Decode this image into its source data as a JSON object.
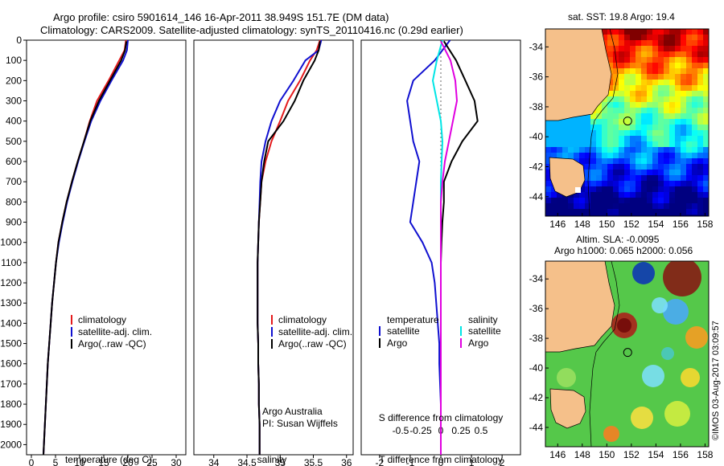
{
  "header": {
    "title_line1": "Argo profile: csiro 5901614_146 16-Apr-2011 38.949S 151.7E (DM data)",
    "title_line2": "Climatology: CARS2009. Satellite-adjusted climatology: synTS_20110416.nc (0.29d earlier)"
  },
  "colors": {
    "climatology": "#e41a1c",
    "satellite": "#1010d0",
    "argo": "#000000",
    "sat_temp_diff": "#1010d0",
    "sat_sal_diff": "#00e5e5",
    "argo_sal_diff": "#e000e0",
    "land": "#f5c08a"
  },
  "chart_data": [
    {
      "id": "temperature",
      "type": "line",
      "xlabel": "temperature (deg C)",
      "ylabel": "",
      "xlim": [
        -1,
        32
      ],
      "ylim": [
        2050,
        0
      ],
      "xticks": [
        0,
        5,
        10,
        15,
        20,
        25,
        30
      ],
      "yticks": [
        0,
        100,
        200,
        300,
        400,
        500,
        600,
        700,
        800,
        900,
        1000,
        1100,
        1200,
        1300,
        1400,
        1500,
        1600,
        1700,
        1800,
        1900,
        2000
      ],
      "legend": [
        "climatology",
        "satellite-adj. clim.",
        "Argo(..raw -QC)"
      ],
      "legend_position": "center-left",
      "series": [
        {
          "name": "climatology",
          "color": "climatology",
          "x": [
            19.6,
            19.3,
            18.2,
            16.0,
            13.6,
            12.1,
            10.9,
            9.6,
            8.4,
            7.3,
            6.4,
            5.6,
            5.1,
            4.7,
            4.3,
            4.0,
            3.7,
            3.4,
            3.2,
            3.0,
            2.8,
            2.6,
            2.5
          ],
          "y": [
            0,
            50,
            100,
            200,
            300,
            400,
            500,
            600,
            700,
            800,
            900,
            1000,
            1100,
            1200,
            1300,
            1400,
            1500,
            1600,
            1700,
            1800,
            1900,
            2000,
            2050
          ]
        },
        {
          "name": "satellite-adj. clim.",
          "color": "satellite",
          "x": [
            20.0,
            19.8,
            19.0,
            16.6,
            14.3,
            12.4,
            11.0,
            9.7,
            8.5,
            7.4,
            6.5,
            5.7,
            5.1,
            4.7,
            4.3,
            4.0,
            3.7,
            3.4,
            3.2,
            3.0,
            2.8,
            2.6,
            2.5
          ],
          "y": [
            0,
            50,
            100,
            200,
            300,
            400,
            500,
            600,
            700,
            800,
            900,
            1000,
            1100,
            1200,
            1300,
            1400,
            1500,
            1600,
            1700,
            1800,
            1900,
            2000,
            2050
          ]
        },
        {
          "name": "Argo(..raw -QC)",
          "color": "argo",
          "x": [
            19.7,
            19.4,
            18.6,
            16.3,
            14.0,
            12.2,
            10.9,
            9.6,
            8.4,
            7.3,
            6.4,
            5.6,
            5.1,
            4.7,
            4.3,
            4.0,
            3.7,
            3.4,
            3.2,
            3.0,
            2.8,
            2.6,
            2.5
          ],
          "y": [
            5,
            50,
            100,
            200,
            300,
            400,
            500,
            600,
            700,
            800,
            900,
            1000,
            1100,
            1200,
            1300,
            1400,
            1500,
            1600,
            1700,
            1800,
            1900,
            2000,
            2050
          ]
        }
      ]
    },
    {
      "id": "salinity",
      "type": "line",
      "xlabel": "salinity",
      "xlim": [
        33.7,
        36.1
      ],
      "ylim": [
        2050,
        0
      ],
      "xticks": [
        34,
        34.5,
        35,
        35.5,
        36
      ],
      "xticklabels": [
        "34",
        "34.5",
        "35",
        "35.5",
        "36"
      ],
      "legend": [
        "climatology",
        "satellite-adj. clim.",
        "Argo(..raw -QC)"
      ],
      "legend_position": "center-right",
      "annotation": [
        "Argo Australia",
        "PI: Susan Wijffels"
      ],
      "series": [
        {
          "name": "climatology",
          "color": "climatology",
          "x": [
            35.6,
            35.55,
            35.45,
            35.3,
            35.12,
            35.0,
            34.87,
            34.78,
            34.72,
            34.7,
            34.68,
            34.67,
            34.66,
            34.66,
            34.66,
            34.66,
            34.67,
            34.67,
            34.68,
            34.68,
            34.69,
            34.69
          ],
          "y": [
            0,
            50,
            100,
            200,
            300,
            400,
            500,
            600,
            700,
            800,
            900,
            1000,
            1100,
            1200,
            1300,
            1400,
            1500,
            1600,
            1700,
            1800,
            1900,
            2050
          ]
        },
        {
          "name": "satellite-adj. clim.",
          "color": "satellite",
          "x": [
            35.62,
            35.58,
            35.38,
            35.2,
            35.0,
            34.87,
            34.78,
            34.72,
            34.7,
            34.69,
            34.68,
            34.67,
            34.66,
            34.66,
            34.66,
            34.66,
            34.67,
            34.67,
            34.68,
            34.68,
            34.69,
            34.69
          ],
          "y": [
            0,
            50,
            100,
            200,
            300,
            400,
            500,
            600,
            700,
            800,
            900,
            1000,
            1100,
            1200,
            1300,
            1400,
            1500,
            1600,
            1700,
            1800,
            1900,
            2050
          ]
        },
        {
          "name": "Argo(..raw -QC)",
          "color": "argo",
          "x": [
            35.6,
            35.58,
            35.52,
            35.35,
            35.22,
            35.05,
            34.82,
            34.76,
            34.72,
            34.7,
            34.68,
            34.67,
            34.66,
            34.66,
            34.66,
            34.66,
            34.67,
            34.67,
            34.68,
            34.68,
            34.69,
            34.69
          ],
          "y": [
            5,
            50,
            100,
            200,
            300,
            400,
            500,
            600,
            700,
            800,
            900,
            1000,
            1100,
            1200,
            1300,
            1400,
            1500,
            1600,
            1700,
            1800,
            1900,
            2050
          ]
        }
      ]
    },
    {
      "id": "difference",
      "type": "line",
      "xlabel": "T difference from climatology",
      "xlabel_top": "S difference from climatology",
      "xlim": [
        -2.6,
        2.6
      ],
      "ylim": [
        2050,
        0
      ],
      "xticks": [
        -2,
        -1,
        0,
        1,
        2
      ],
      "xticks_s": [
        -0.5,
        -0.25,
        0,
        0.25,
        0.5
      ],
      "xticklabels_s": [
        "-0.5",
        "-0.25",
        "0",
        "0.25",
        "0.5"
      ],
      "legend_temperature_title": "temperature",
      "legend_salinity_title": "salinity",
      "legend": [
        "satellite",
        "Argo",
        "satellite",
        "Argo"
      ],
      "series": [
        {
          "name": "satellite",
          "group": "temperature",
          "color": "sat_temp_diff",
          "x": [
            0.3,
            -0.2,
            -0.9,
            -1.1,
            -1.0,
            -0.9,
            -0.7,
            -0.8,
            -0.9,
            -1.0,
            -0.6,
            -0.3,
            -0.2,
            -0.15,
            -0.1,
            -0.05,
            -0.05,
            0,
            0,
            0
          ],
          "y": [
            0,
            100,
            200,
            300,
            400,
            500,
            600,
            700,
            800,
            900,
            1000,
            1100,
            1200,
            1300,
            1400,
            1500,
            1600,
            1800,
            1900,
            2050
          ]
        },
        {
          "name": "Argo",
          "group": "temperature",
          "color": "argo",
          "x": [
            0.1,
            0.5,
            0.8,
            1.1,
            1.2,
            0.7,
            0.35,
            0.1,
            0.1,
            0.05,
            0.02,
            0,
            0,
            0,
            0,
            0,
            0,
            0,
            0,
            0
          ],
          "y": [
            5,
            100,
            200,
            300,
            400,
            500,
            600,
            700,
            800,
            900,
            1000,
            1100,
            1200,
            1300,
            1400,
            1500,
            1600,
            1800,
            1900,
            2050
          ]
        },
        {
          "name": "satellite",
          "group": "salinity",
          "color": "sat_sal_diff",
          "x": [
            0.02,
            -0.05,
            -0.1,
            -0.05,
            0,
            0.02,
            0.01,
            0,
            0,
            0,
            0,
            0,
            0
          ],
          "y": [
            0,
            100,
            200,
            300,
            400,
            500,
            600,
            700,
            800,
            1000,
            1200,
            1600,
            2050
          ]
        },
        {
          "name": "Argo",
          "group": "salinity",
          "color": "argo_sal_diff",
          "x": [
            0,
            0.12,
            0.18,
            0.2,
            0.15,
            0.1,
            0.05,
            0.02,
            0,
            0,
            0,
            0,
            0
          ],
          "y": [
            5,
            100,
            200,
            300,
            400,
            500,
            600,
            700,
            800,
            1000,
            1200,
            1600,
            2050
          ]
        }
      ]
    },
    {
      "id": "sst-map",
      "type": "heatmap",
      "title": "sat. SST: 19.8 Argo: 19.4",
      "xticks": [
        146,
        148,
        150,
        152,
        154,
        156,
        158
      ],
      "yticks": [
        -34,
        -36,
        -38,
        -40,
        -42,
        -44
      ],
      "xlim": [
        145,
        158.3
      ],
      "ylim": [
        -45.3,
        -32.8
      ],
      "float_position": {
        "lon": 151.7,
        "lat": -38.949
      }
    },
    {
      "id": "sla-map",
      "type": "heatmap",
      "title": "Altim. SLA: -0.0095",
      "subtitle": "Argo h1000: 0.065 h2000: 0.056",
      "xticks": [
        146,
        148,
        150,
        152,
        154,
        156,
        158
      ],
      "yticks": [
        -34,
        -36,
        -38,
        -40,
        -42,
        -44
      ],
      "xlim": [
        145,
        158.3
      ],
      "ylim": [
        -45.3,
        -32.8
      ],
      "float_position": {
        "lon": 151.7,
        "lat": -38.949
      }
    }
  ],
  "watermark": "©IMOS 03-Aug-2017 03:09:57"
}
